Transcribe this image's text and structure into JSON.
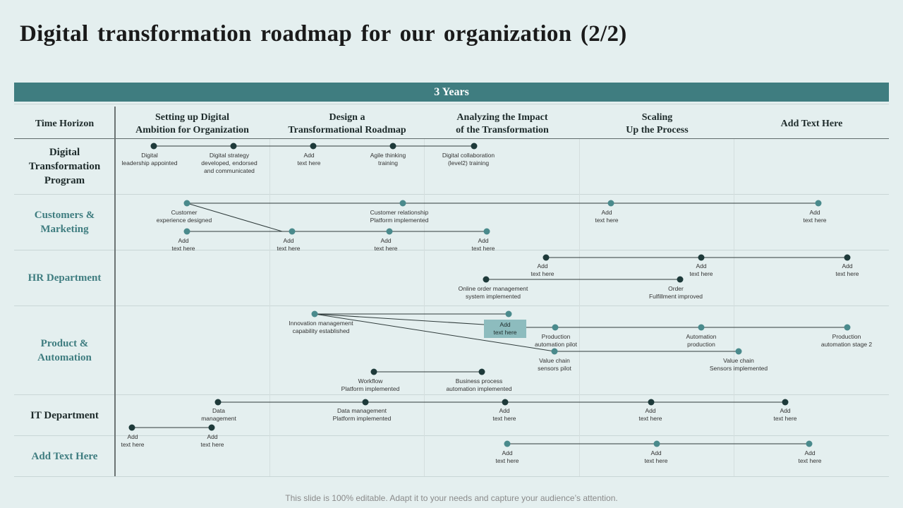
{
  "title": "Digital transformation roadmap for our organization (2/2)",
  "years_label": "3 Years",
  "time_horizon_label": "Time Horizon",
  "phases": [
    "Setting up Digital\nAmbition for Organization",
    "Design a\nTransformational Roadmap",
    "Analyzing the Impact\nof the Transformation",
    "Scaling\nUp the Process",
    "Add Text Here"
  ],
  "rows": [
    {
      "label": "Digital\nTransformation\nProgram"
    },
    {
      "label": "Customers &\nMarketing"
    },
    {
      "label": "HR Department"
    },
    {
      "label": "Product &\nAutomation"
    },
    {
      "label": "IT Department"
    },
    {
      "label": "Add Text Here"
    }
  ],
  "colors": {
    "dark_node": "#1e3a3a",
    "teal_node": "#4a8a8c",
    "bar": "#3f7d80",
    "callout": "#8dbcbe"
  },
  "milestones": {
    "dtp_1": "Digital\nleadership appointed",
    "dtp_2": "Digital strategy\ndeveloped, endorsed\nand communicated",
    "dtp_3": "Add\ntext here",
    "dtp_4": "Agile thinking\ntraining",
    "dtp_5": "Digital collaboration\n(level2) training",
    "cm_a1": "Customer\nexperience designed",
    "cm_a2": "Customer relationship\nPlatform implemented",
    "cm_a3": "Add\ntext here",
    "cm_a4": "Add\ntext here",
    "cm_b1": "Add\ntext here",
    "cm_b2": "Add\ntext here",
    "cm_b3": "Add\ntext here",
    "cm_b4": "Add\ntext here",
    "hr_a1": "Add\ntext here",
    "hr_a2": "Add\ntext here",
    "hr_a3": "Add\ntext here",
    "hr_b1": "Online order management\nsystem implemented",
    "hr_b2": "Order\nFulfillment improved",
    "pa_1": "Innovation management\ncapability established",
    "pa_callout": "Add\ntext here",
    "pa_2": "Production\nautomation pilot",
    "pa_3": "Automation\nproduction",
    "pa_4": "Production\nautomation stage 2",
    "pa_5": "Value chain\nsensors pilot",
    "pa_6": "Value chain\nSensors implemented",
    "pa_7": "Workflow\nPlatform implemented",
    "pa_8": "Business process\nautomation implemented",
    "it_a1": "Data\nmanagement",
    "it_a2": "Data management\nPlatform implemented",
    "it_a3": "Add\ntext here",
    "it_a4": "Add\ntext here",
    "it_a5": "Add\ntext here",
    "it_b1": "Add\ntext here",
    "it_b2": "Add\ntext here",
    "ad_1": "Add\ntext here",
    "ad_2": "Add\ntext here",
    "ad_3": "Add\ntext here"
  },
  "footer": "This slide is 100% editable. Adapt it to your needs and capture your audience’s attention."
}
